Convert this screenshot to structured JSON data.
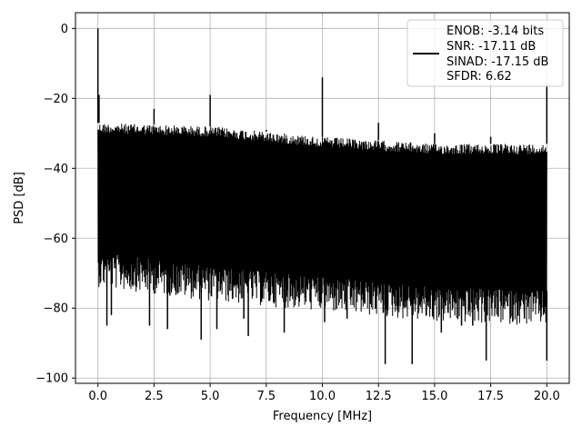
{
  "chart_data": {
    "type": "line",
    "xlabel": "Frequency [MHz]",
    "ylabel": "PSD [dB]",
    "xlim": [
      -1.0,
      21.0
    ],
    "ylim": [
      -101.5,
      4.5
    ],
    "xticks": [
      0.0,
      2.5,
      5.0,
      7.5,
      10.0,
      12.5,
      15.0,
      17.5,
      20.0
    ],
    "xtick_labels": [
      "0.0",
      "2.5",
      "5.0",
      "7.5",
      "10.0",
      "12.5",
      "15.0",
      "17.5",
      "20.0"
    ],
    "yticks": [
      0,
      -20,
      -40,
      -60,
      -80,
      -100
    ],
    "ytick_labels": [
      "0",
      "−20",
      "−40",
      "−60",
      "−80",
      "−100"
    ],
    "grid": true,
    "legend_position": "top-right",
    "legend_lines": [
      "ENOB: -3.14 bits",
      "SNR: -17.11 dB",
      "SINAD: -17.15 dB",
      "SFDR: 6.62"
    ],
    "series": [
      {
        "color": "#000000",
        "noise_floor_upper": [
          [
            0.0,
            -27
          ],
          [
            5.0,
            -28
          ],
          [
            10.0,
            -31
          ],
          [
            15.0,
            -33
          ],
          [
            20.0,
            -33
          ]
        ],
        "noise_floor_lower": [
          [
            0.0,
            -64
          ],
          [
            5.0,
            -68
          ],
          [
            10.0,
            -71
          ],
          [
            15.0,
            -74
          ],
          [
            20.0,
            -75
          ]
        ],
        "peaks": [
          {
            "x": 0.0,
            "y": 0
          },
          {
            "x": 0.05,
            "y": -19
          },
          {
            "x": 2.5,
            "y": -23
          },
          {
            "x": 5.0,
            "y": -19
          },
          {
            "x": 7.5,
            "y": -29
          },
          {
            "x": 10.0,
            "y": -14
          },
          {
            "x": 12.5,
            "y": -27
          },
          {
            "x": 15.0,
            "y": -30
          },
          {
            "x": 17.5,
            "y": -31
          },
          {
            "x": 20.0,
            "y": -16
          }
        ],
        "dips": [
          {
            "x": 0.0,
            "y": -64
          },
          {
            "x": 0.4,
            "y": -85
          },
          {
            "x": 0.6,
            "y": -82
          },
          {
            "x": 2.3,
            "y": -85
          },
          {
            "x": 3.1,
            "y": -86
          },
          {
            "x": 4.6,
            "y": -89
          },
          {
            "x": 5.3,
            "y": -86
          },
          {
            "x": 6.5,
            "y": -83
          },
          {
            "x": 6.7,
            "y": -88
          },
          {
            "x": 8.3,
            "y": -87
          },
          {
            "x": 10.1,
            "y": -84
          },
          {
            "x": 11.1,
            "y": -83
          },
          {
            "x": 12.8,
            "y": -96
          },
          {
            "x": 14.0,
            "y": -96
          },
          {
            "x": 15.3,
            "y": -87
          },
          {
            "x": 16.2,
            "y": -85
          },
          {
            "x": 16.7,
            "y": -85
          },
          {
            "x": 17.3,
            "y": -95
          },
          {
            "x": 19.0,
            "y": -83
          },
          {
            "x": 20.0,
            "y": -95
          }
        ]
      }
    ]
  }
}
